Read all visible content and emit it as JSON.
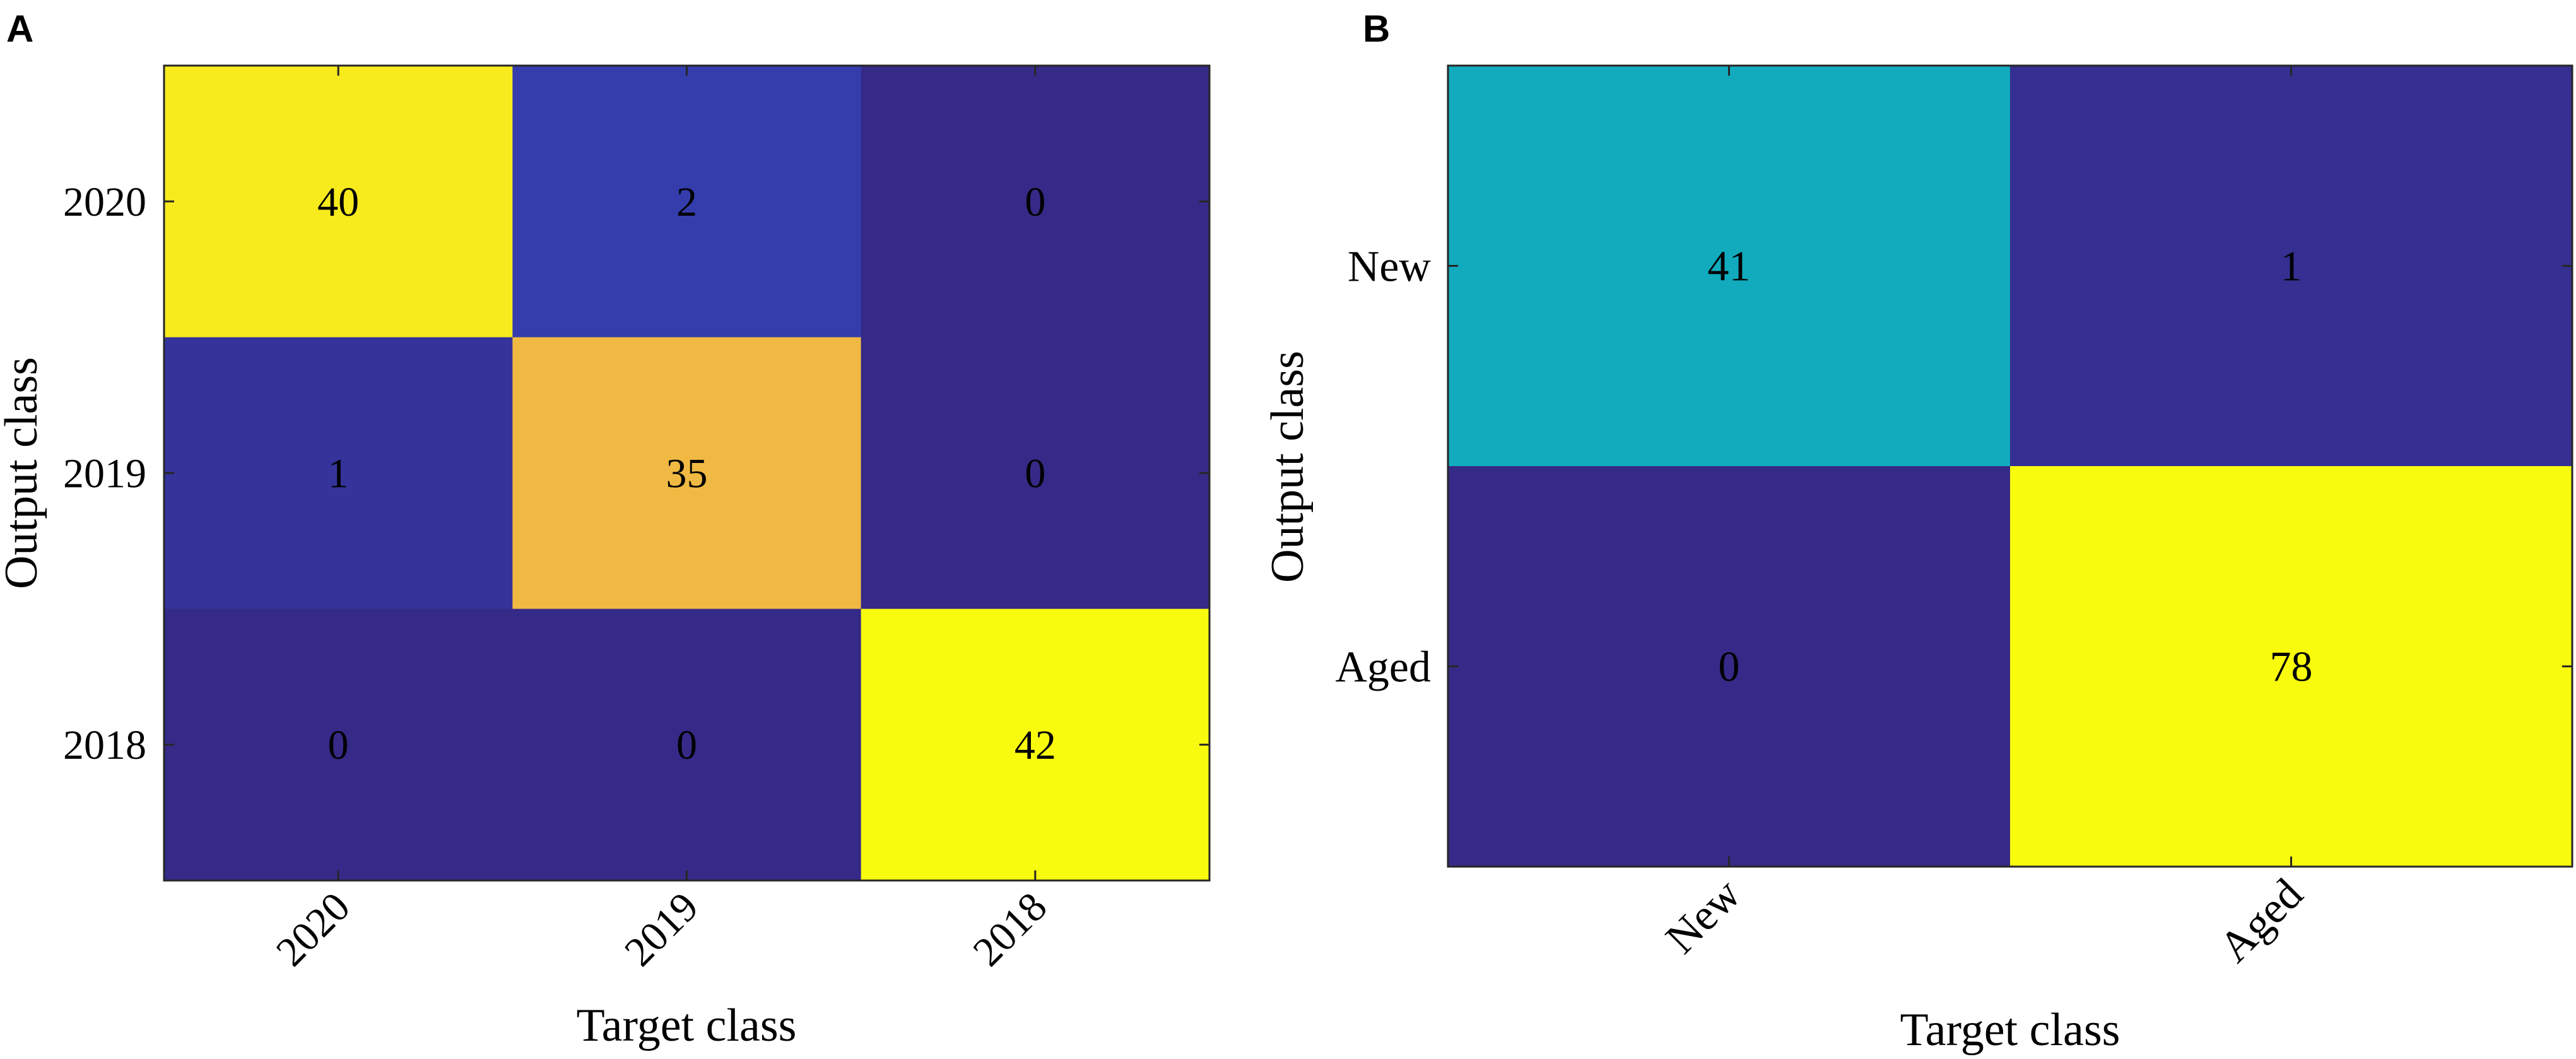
{
  "chart_data": [
    {
      "panel": "A",
      "type": "heatmap",
      "title": "",
      "xlabel": "Target class",
      "ylabel": "Output class",
      "x_categories": [
        "2020",
        "2019",
        "2018"
      ],
      "y_categories": [
        "2020",
        "2019",
        "2018"
      ],
      "values": [
        [
          40,
          2,
          0
        ],
        [
          1,
          35,
          0
        ],
        [
          0,
          0,
          42
        ]
      ],
      "colormap": "parula",
      "value_range": [
        0,
        42
      ]
    },
    {
      "panel": "B",
      "type": "heatmap",
      "title": "",
      "xlabel": "Target class",
      "ylabel": "Output class",
      "x_categories": [
        "New",
        "Aged"
      ],
      "y_categories": [
        "New",
        "Aged"
      ],
      "values": [
        [
          41,
          1
        ],
        [
          0,
          78
        ]
      ],
      "colormap": "parula",
      "value_range": [
        0,
        78
      ]
    }
  ],
  "colors": {
    "parula_low": "#352a87",
    "parula_low_mid": "#353eaf",
    "parula_high_mid": "#fbb83a",
    "parula_high": "#f9fb0e",
    "axis": "#262626",
    "text": "#000000"
  }
}
